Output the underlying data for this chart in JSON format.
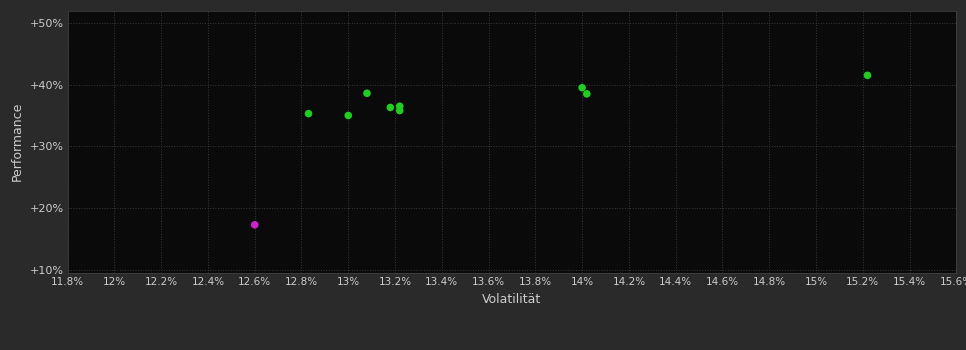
{
  "background_color": "#2a2a2a",
  "plot_bg_color": "#0a0a0a",
  "grid_color": "#3a3a3a",
  "text_color": "#cccccc",
  "xlabel": "Volatilität",
  "ylabel": "Performance",
  "xlim": [
    0.118,
    0.156
  ],
  "ylim": [
    0.095,
    0.52
  ],
  "xticks": [
    0.118,
    0.12,
    0.122,
    0.124,
    0.126,
    0.128,
    0.13,
    0.132,
    0.134,
    0.136,
    0.138,
    0.14,
    0.142,
    0.144,
    0.146,
    0.148,
    0.15,
    0.152,
    0.154,
    0.156
  ],
  "yticks": [
    0.1,
    0.2,
    0.3,
    0.4,
    0.5
  ],
  "ytick_labels": [
    "+10%",
    "+20%",
    "+30%",
    "+40%",
    "+50%"
  ],
  "xtick_labels": [
    "11.8%",
    "12%",
    "12.2%",
    "12.4%",
    "12.6%",
    "12.8%",
    "13%",
    "13.2%",
    "13.4%",
    "13.6%",
    "13.8%",
    "14%",
    "14.2%",
    "14.4%",
    "14.6%",
    "14.8%",
    "15%",
    "15.2%",
    "15.4%",
    "15.6%"
  ],
  "green_points": [
    [
      0.1283,
      0.353
    ],
    [
      0.13,
      0.35
    ],
    [
      0.1308,
      0.386
    ],
    [
      0.1318,
      0.363
    ],
    [
      0.1322,
      0.358
    ],
    [
      0.1322,
      0.365
    ],
    [
      0.14,
      0.395
    ],
    [
      0.1402,
      0.385
    ],
    [
      0.1522,
      0.415
    ]
  ],
  "magenta_points": [
    [
      0.126,
      0.173
    ]
  ],
  "green_color": "#22cc22",
  "magenta_color": "#cc22cc",
  "marker_size": 30
}
